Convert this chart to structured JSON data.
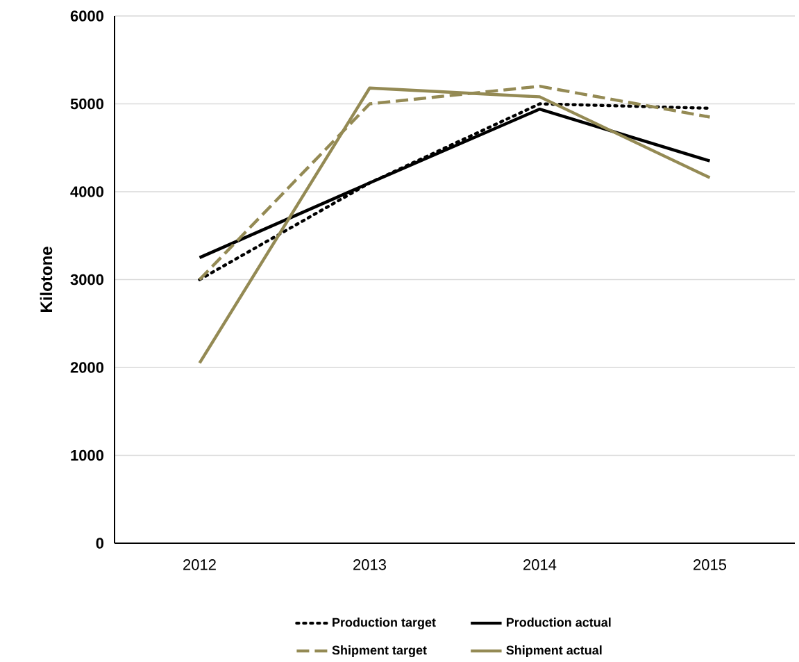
{
  "chart_data": {
    "type": "line",
    "ylabel": "Kilotone",
    "categories": [
      "2012",
      "2013",
      "2014",
      "2015"
    ],
    "series": [
      {
        "name": "Production target",
        "color": "#000000",
        "line_style": "dotted",
        "values": [
          3000,
          4100,
          5000,
          4950
        ]
      },
      {
        "name": "Production actual",
        "color": "#000000",
        "line_style": "solid",
        "values": [
          3250,
          4100,
          4940,
          4350
        ]
      },
      {
        "name": "Shipment target",
        "color": "#948a54",
        "line_style": "dashed",
        "values": [
          3000,
          5000,
          5200,
          4850
        ]
      },
      {
        "name": "Shipment actual",
        "color": "#948a54",
        "line_style": "solid",
        "values": [
          2050,
          5180,
          5080,
          4160
        ]
      }
    ],
    "ylim": [
      0,
      6000
    ],
    "yticks": [
      0,
      1000,
      2000,
      3000,
      4000,
      5000,
      6000
    ],
    "grid": "y",
    "legend": "bottom",
    "marker": "none"
  }
}
